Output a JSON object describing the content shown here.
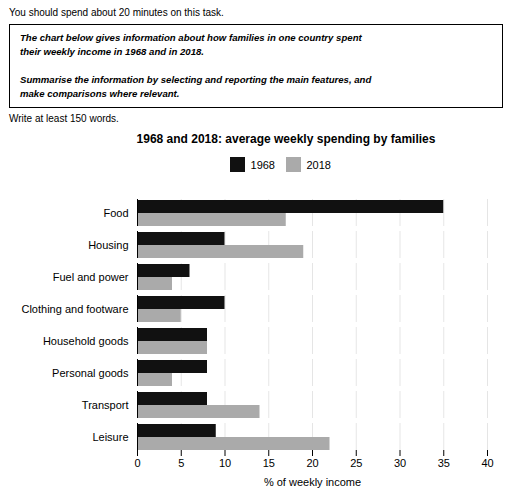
{
  "chart_data": {
    "type": "bar",
    "orientation": "horizontal",
    "title": "1968 and 2018: average weekly spending by families",
    "xlabel": "% of weekly income",
    "categories": [
      "Food",
      "Housing",
      "Fuel and power",
      "Clothing and footware",
      "Household goods",
      "Personal goods",
      "Transport",
      "Leisure"
    ],
    "series": [
      {
        "name": "1968",
        "color": "#111111",
        "values": [
          35,
          10,
          6,
          10,
          8,
          8,
          8,
          9
        ]
      },
      {
        "name": "2018",
        "color": "#aaaaaa",
        "values": [
          17,
          19,
          4,
          5,
          8,
          4,
          14,
          22
        ]
      }
    ],
    "xlim": [
      0,
      40
    ],
    "xticks": [
      0,
      5,
      10,
      15,
      20,
      25,
      30,
      35,
      40
    ],
    "grid": true,
    "legend": "top",
    "annotations": [
      "You should spend about 20 minutes on this task.",
      "The chart below gives information about how families in one country spent",
      "their weekly income in 1968 and in 2018.",
      "Summarise the information by selecting and reporting the main features, and",
      "make comparisons where relevant.",
      "Write at least 150 words."
    ]
  }
}
